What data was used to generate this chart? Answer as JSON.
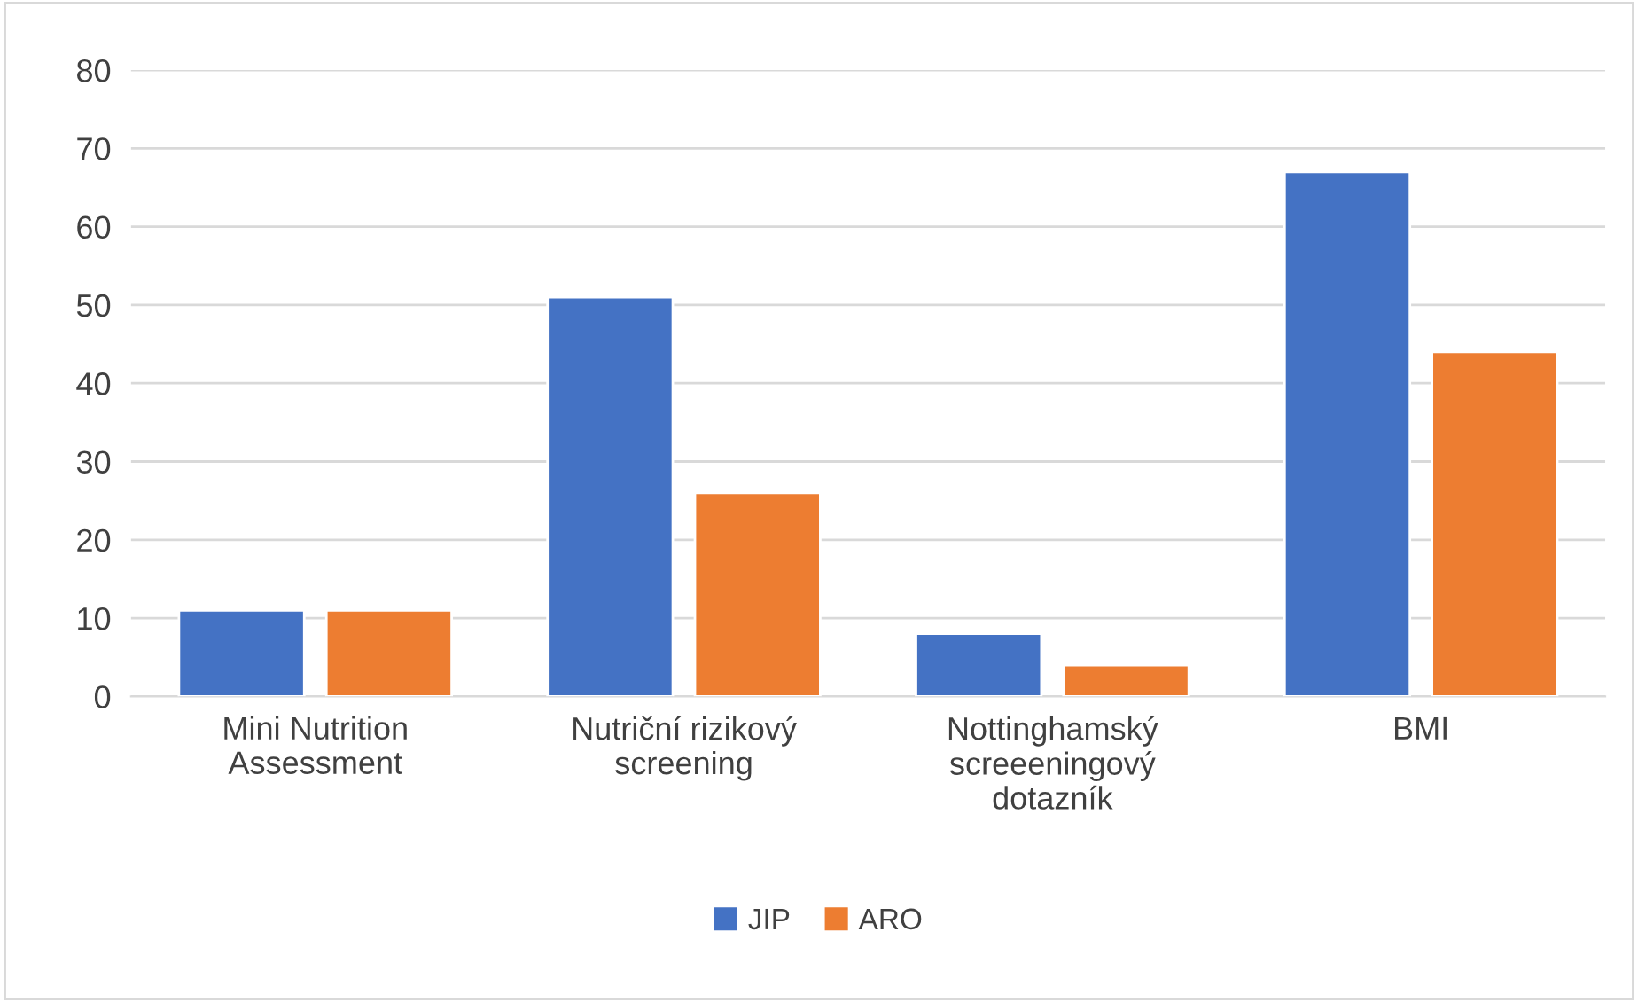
{
  "chart_data": {
    "type": "bar",
    "categories": [
      "Mini Nutrition\nAssessment",
      "Nutriční rizikový\nscreening",
      "Nottinghamský\nscreeeningový\ndotazník",
      "BMI"
    ],
    "series": [
      {
        "name": "JIP",
        "color": "#4472c4",
        "values": [
          11,
          51,
          8,
          67
        ]
      },
      {
        "name": "ARO",
        "color": "#ed7d31",
        "values": [
          11,
          26,
          4,
          44
        ]
      }
    ],
    "ylim": [
      0,
      80
    ],
    "yticks": [
      0,
      10,
      20,
      30,
      40,
      50,
      60,
      70,
      80
    ],
    "grid": "y",
    "legend": "bottom"
  }
}
